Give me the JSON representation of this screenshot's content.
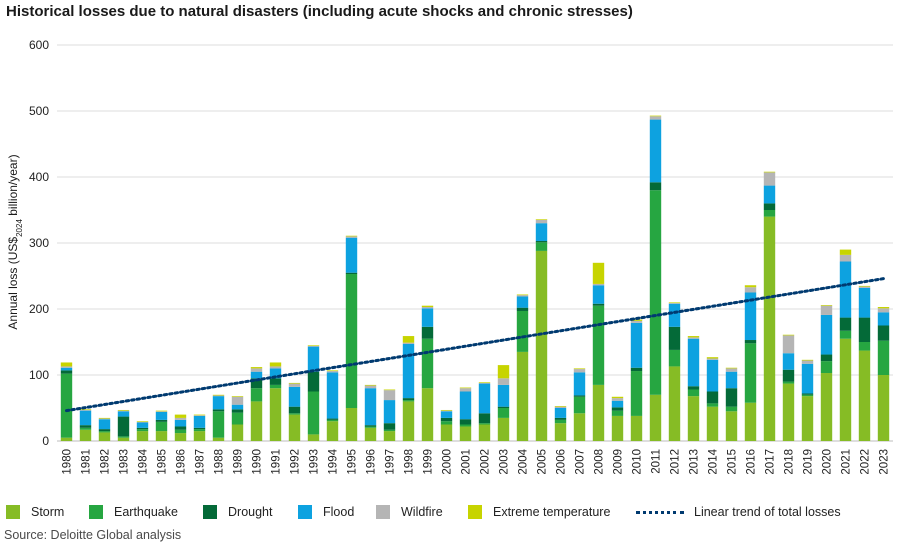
{
  "chart_data": {
    "type": "bar",
    "stacked": true,
    "title": "Historical losses due to natural disasters (including acute shocks and chronic stresses)",
    "ylabel_main": "Annual loss (US$",
    "ylabel_sub": "2024",
    "ylabel_tail": " billion/year)",
    "xlabel": "",
    "ylim": [
      0,
      600
    ],
    "yticks": [
      0,
      100,
      200,
      300,
      400,
      500,
      600
    ],
    "grid": "horizontal",
    "legend_position": "bottom",
    "categories": [
      "1980",
      "1981",
      "1982",
      "1983",
      "1984",
      "1985",
      "1986",
      "1987",
      "1988",
      "1989",
      "1990",
      "1991",
      "1992",
      "1993",
      "1994",
      "1995",
      "1996",
      "1997",
      "1998",
      "1999",
      "2000",
      "2001",
      "2002",
      "2003",
      "2004",
      "2005",
      "2006",
      "2007",
      "2008",
      "2009",
      "2010",
      "2011",
      "2012",
      "2013",
      "2014",
      "2015",
      "2016",
      "2017",
      "2018",
      "2019",
      "2020",
      "2021",
      "2022",
      "2023"
    ],
    "series": [
      {
        "name": "Storm",
        "color": "#86bc25",
        "values": [
          5,
          17,
          13,
          5,
          15,
          15,
          12,
          15,
          5,
          25,
          60,
          80,
          40,
          10,
          30,
          50,
          20,
          15,
          60,
          80,
          25,
          22,
          25,
          35,
          135,
          288,
          27,
          42,
          85,
          38,
          38,
          70,
          113,
          68,
          52,
          45,
          58,
          340,
          87,
          68,
          103,
          155,
          137,
          100
        ]
      },
      {
        "name": "Earthquake",
        "color": "#26a641",
        "values": [
          97,
          3,
          2,
          2,
          3,
          14,
          5,
          3,
          40,
          18,
          20,
          5,
          2,
          65,
          2,
          203,
          2,
          2,
          2,
          75,
          5,
          3,
          2,
          15,
          62,
          13,
          5,
          25,
          120,
          8,
          68,
          310,
          25,
          10,
          5,
          7,
          90,
          10,
          3,
          2,
          18,
          12,
          13,
          52
        ]
      },
      {
        "name": "Drought",
        "color": "#046a38",
        "values": [
          5,
          4,
          3,
          30,
          2,
          3,
          5,
          2,
          3,
          5,
          15,
          10,
          10,
          30,
          2,
          2,
          2,
          10,
          3,
          18,
          5,
          8,
          15,
          2,
          5,
          2,
          3,
          2,
          3,
          5,
          5,
          12,
          35,
          5,
          18,
          28,
          5,
          10,
          18,
          2,
          10,
          20,
          37,
          23
        ]
      },
      {
        "name": "Flood",
        "color": "#0da2e0",
        "values": [
          4,
          22,
          15,
          8,
          8,
          12,
          10,
          18,
          20,
          7,
          10,
          15,
          30,
          38,
          70,
          53,
          56,
          35,
          82,
          28,
          10,
          42,
          45,
          33,
          17,
          27,
          15,
          35,
          28,
          10,
          68,
          95,
          35,
          72,
          48,
          25,
          72,
          27,
          25,
          45,
          60,
          85,
          45,
          20
        ]
      },
      {
        "name": "Wildfire",
        "color": "#b5b5b5",
        "values": [
          2,
          1,
          1,
          1,
          1,
          1,
          3,
          1,
          1,
          12,
          5,
          3,
          5,
          1,
          2,
          2,
          4,
          15,
          2,
          2,
          1,
          5,
          1,
          10,
          2,
          5,
          2,
          5,
          2,
          4,
          3,
          5,
          1,
          2,
          2,
          5,
          8,
          20,
          27,
          5,
          14,
          10,
          2,
          6
        ]
      },
      {
        "name": "Extreme temperature",
        "color": "#c7d400",
        "values": [
          6,
          1,
          1,
          1,
          1,
          1,
          5,
          1,
          1,
          1,
          2,
          6,
          1,
          1,
          1,
          1,
          1,
          1,
          10,
          2,
          1,
          1,
          1,
          20,
          1,
          1,
          1,
          1,
          32,
          2,
          2,
          1,
          1,
          2,
          2,
          1,
          3,
          1,
          1,
          1,
          1,
          8,
          1,
          2
        ]
      }
    ],
    "trend": {
      "name": "Linear trend of total losses",
      "color": "#003a70",
      "start": [
        1980,
        46
      ],
      "end": [
        2023,
        246
      ]
    }
  },
  "source": "Source: Deloitte Global analysis"
}
